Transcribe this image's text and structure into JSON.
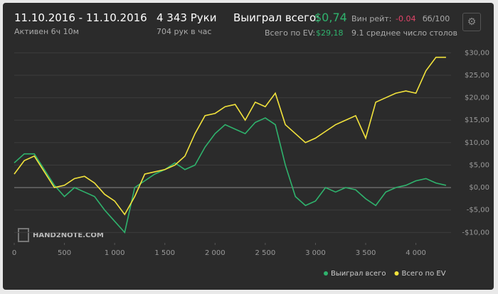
{
  "header": {
    "date_range": "11.10.2016 - 11.10.2016",
    "active": "Активен 6ч 10м",
    "hands": "4 343 Руки",
    "hands_per_hour": "704 рук в час",
    "won_label": "Выиграл всего:",
    "won_value": "$0,74",
    "ev_label": "Всего по EV:",
    "ev_value": "$29,18",
    "winrate_label": "Вин рейт:",
    "winrate_value": "-0.04",
    "winrate_unit": "бб/100",
    "tables": "9.1 среднее число столов"
  },
  "watermark": "HAND2NOTE.COM",
  "chart_data": {
    "type": "line",
    "x": [
      0,
      100,
      200,
      300,
      400,
      500,
      600,
      700,
      800,
      900,
      1000,
      1100,
      1200,
      1300,
      1400,
      1500,
      1600,
      1700,
      1800,
      1900,
      2000,
      2100,
      2200,
      2300,
      2400,
      2500,
      2600,
      2700,
      2800,
      2900,
      3000,
      3100,
      3200,
      3300,
      3400,
      3500,
      3600,
      3700,
      3800,
      3900,
      4000,
      4100,
      4200,
      4300
    ],
    "series": [
      {
        "name": "Выиграл всего",
        "color": "#2fb36d",
        "values": [
          5.5,
          7.5,
          7.5,
          4,
          0.5,
          -2,
          0,
          -1,
          -2,
          -5,
          -7.5,
          -10,
          0,
          1.5,
          3,
          4,
          5.5,
          4,
          5,
          9,
          12,
          14,
          13,
          12,
          14.5,
          15.5,
          14,
          5,
          -2,
          -4,
          -3,
          0,
          -1,
          0,
          -0.5,
          -2.5,
          -4,
          -1,
          0,
          0.5,
          1.5,
          2,
          1,
          0.5
        ]
      },
      {
        "name": "Всего по EV",
        "color": "#f2e33c",
        "values": [
          3,
          6,
          7,
          3.5,
          0,
          0.5,
          2,
          2.5,
          1,
          -1.5,
          -3,
          -6,
          -2,
          3,
          3.5,
          4,
          5,
          7,
          12,
          16,
          16.5,
          18,
          18.5,
          15,
          19,
          18,
          21,
          14,
          12,
          10,
          11,
          12.5,
          14,
          15,
          16,
          11,
          19,
          20,
          21,
          21.5,
          21,
          26,
          29,
          29
        ]
      }
    ],
    "xlim": [
      0,
      4350
    ],
    "ylim": [
      -12,
      31
    ],
    "xticks": [
      0,
      500,
      {
        "value": 1000,
        "label": "1 000"
      },
      {
        "value": 1500,
        "label": "1 500"
      },
      {
        "value": 2000,
        "label": "2 000"
      },
      {
        "value": 2500,
        "label": "2 500"
      },
      {
        "value": 3000,
        "label": "3 000"
      },
      {
        "value": 3500,
        "label": "3 500"
      },
      {
        "value": 4000,
        "label": "4 000"
      }
    ],
    "yticks": [
      {
        "value": -10,
        "label": "-$10,00"
      },
      {
        "value": -5,
        "label": "-$5,00"
      },
      {
        "value": 0,
        "label": "$0,00"
      },
      {
        "value": 5,
        "label": "$5,00"
      },
      {
        "value": 10,
        "label": "$10,00"
      },
      {
        "value": 15,
        "label": "$15,00"
      },
      {
        "value": 20,
        "label": "$20,00"
      },
      {
        "value": 25,
        "label": "$25,00"
      },
      {
        "value": 30,
        "label": "$30,00"
      }
    ],
    "grid": true
  }
}
